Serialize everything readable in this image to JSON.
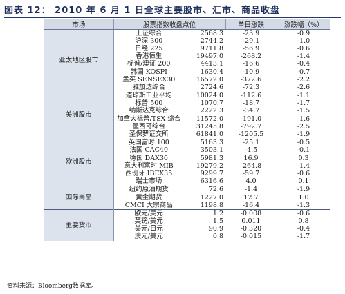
{
  "title": "图表 12： 2010 年 6 月 1 日全球主要股市、汇市、商品收盘",
  "headers": [
    "市场",
    "股票指数收盘点位",
    "",
    "单日涨跌",
    "涨跌幅（%）"
  ],
  "groups": [
    {
      "region": "亚太地区股市",
      "rows": [
        {
          "name": "上证综合",
          "close": "2568.3",
          "change": "-23.9",
          "pct": "-0.9"
        },
        {
          "name": "沪深 300",
          "close": "2744.2",
          "change": "-29.1",
          "pct": "-1.0"
        },
        {
          "name": "日经 225",
          "close": "9711.8",
          "change": "-56.9",
          "pct": "-0.6"
        },
        {
          "name": "香港恒生",
          "close": "19497.0",
          "change": "-268.2",
          "pct": "-1.4"
        },
        {
          "name": "标普/澳证 200",
          "close": "4413.1",
          "change": "-16.6",
          "pct": "-0.4"
        },
        {
          "name": "韩国 KOSPI",
          "close": "1630.4",
          "change": "-10.9",
          "pct": "-0.7"
        },
        {
          "name": "孟买 SENSEX30",
          "close": "16572.0",
          "change": "-372.6",
          "pct": "-2.2"
        },
        {
          "name": "雅加达综合",
          "close": "2724.6",
          "change": "-72.3",
          "pct": "-2.6"
        }
      ]
    },
    {
      "region": "美洲股市",
      "rows": [
        {
          "name": "道琼斯工业平均",
          "close": "10024.0",
          "change": "-112.6",
          "pct": "-1.1"
        },
        {
          "name": "标普 500",
          "close": "1070.7",
          "change": "-18.7",
          "pct": "-1.7"
        },
        {
          "name": "纳斯达克综合",
          "close": "2222.3",
          "change": "-34.7",
          "pct": "-1.5"
        },
        {
          "name": "加拿大标普/TSX 综合",
          "close": "11572.0",
          "change": "-191.0",
          "pct": "-1.6"
        },
        {
          "name": "墨西哥综合",
          "close": "31245.8",
          "change": "-792.7",
          "pct": "-2.5"
        },
        {
          "name": "圣保罗证交所",
          "close": "61841.0",
          "change": "-1205.5",
          "pct": "-1.9"
        }
      ]
    },
    {
      "region": "欧洲股市",
      "rows": [
        {
          "name": "英国富时 100",
          "close": "5163.3",
          "change": "-25.1",
          "pct": "-0.5"
        },
        {
          "name": "法国 CAC40",
          "close": "3503.1",
          "change": "-4.5",
          "pct": "-0.1"
        },
        {
          "name": "德国 DAX30",
          "close": "5981.3",
          "change": "16.9",
          "pct": "0.3"
        },
        {
          "name": "意大利富时 MIB",
          "close": "19279.2",
          "change": "-264.8",
          "pct": "-1.4"
        },
        {
          "name": "西班牙 IBEX35",
          "close": "9299.7",
          "change": "-59.7",
          "pct": "-0.6"
        },
        {
          "name": "瑞士市场",
          "close": "6316.6",
          "change": "4.0",
          "pct": "0.1"
        }
      ]
    },
    {
      "region": "国际商品",
      "rows": [
        {
          "name": "纽约原油期货",
          "close": "72.6",
          "change": "-1.4",
          "pct": "-1.9"
        },
        {
          "name": "黄金期货",
          "close": "1227.0",
          "change": "12.7",
          "pct": "1.0"
        },
        {
          "name": "CMCI 大宗商品",
          "close": "1198.8",
          "change": "-16.4",
          "pct": "-1.3"
        }
      ]
    },
    {
      "region": "主要货币",
      "rows": [
        {
          "name": "欧元/美元",
          "close": "1.2",
          "change": "-0.008",
          "pct": "-0.6"
        },
        {
          "name": "英镑/美元",
          "close": "1.5",
          "change": "0.011",
          "pct": "0.8"
        },
        {
          "name": "美元/日元",
          "close": "90.9",
          "change": "-0.320",
          "pct": "-0.4"
        },
        {
          "name": "澳元/美元",
          "close": "0.8",
          "change": "-0.015",
          "pct": "-1.7"
        }
      ]
    }
  ],
  "footnote": "资料来源：Bloomberg数据库。"
}
